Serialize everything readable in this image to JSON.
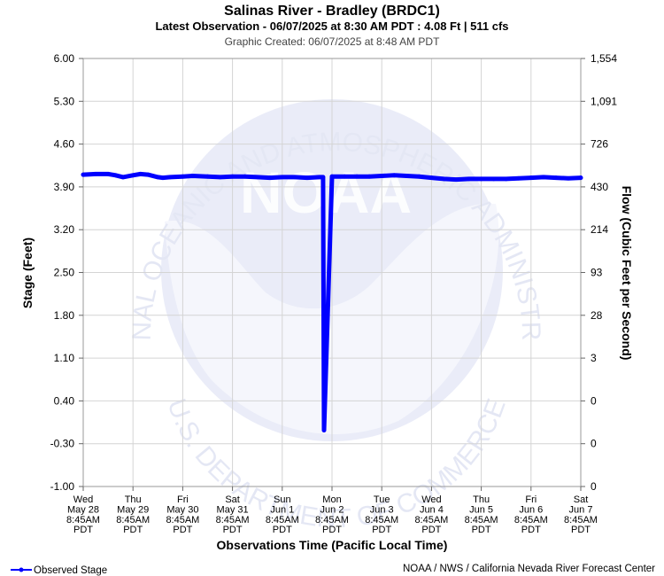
{
  "chart_data": {
    "type": "line",
    "title": "Salinas River - Bradley (BRDC1)",
    "subtitle": "Latest Observation - 06/07/2025 at 8:30 AM PDT : 4.08 Ft | 511 cfs",
    "created": "Graphic Created: 06/07/2025 at 8:48 AM PDT",
    "xlabel": "Observations Time (Pacific Local Time)",
    "ylabel": "Stage (Feet)",
    "y2label": "Flow (Cubic Feet per Second)",
    "ylim": [
      -1.0,
      6.0
    ],
    "xlim": [
      0,
      10
    ],
    "y_ticks": [
      "6.00",
      "5.30",
      "4.60",
      "3.90",
      "3.20",
      "2.50",
      "1.80",
      "1.10",
      "0.40",
      "-0.30",
      "-1.00"
    ],
    "y2_ticks": [
      "1,554",
      "1,091",
      "726",
      "430",
      "214",
      "93",
      "28",
      "3",
      "0",
      "0",
      "0"
    ],
    "x_ticks": [
      {
        "day": "Wed",
        "date": "May 28",
        "time": "8:45AM",
        "tz": "PDT"
      },
      {
        "day": "Thu",
        "date": "May 29",
        "time": "8:45AM",
        "tz": "PDT"
      },
      {
        "day": "Fri",
        "date": "May 30",
        "time": "8:45AM",
        "tz": "PDT"
      },
      {
        "day": "Sat",
        "date": "May 31",
        "time": "8:45AM",
        "tz": "PDT"
      },
      {
        "day": "Sun",
        "date": "Jun 1",
        "time": "8:45AM",
        "tz": "PDT"
      },
      {
        "day": "Mon",
        "date": "Jun 2",
        "time": "8:45AM",
        "tz": "PDT"
      },
      {
        "day": "Tue",
        "date": "Jun 3",
        "time": "8:45AM",
        "tz": "PDT"
      },
      {
        "day": "Wed",
        "date": "Jun 4",
        "time": "8:45AM",
        "tz": "PDT"
      },
      {
        "day": "Thu",
        "date": "Jun 5",
        "time": "8:45AM",
        "tz": "PDT"
      },
      {
        "day": "Fri",
        "date": "Jun 6",
        "time": "8:45AM",
        "tz": "PDT"
      },
      {
        "day": "Sat",
        "date": "Jun 7",
        "time": "8:45AM",
        "tz": "PDT"
      }
    ],
    "series": [
      {
        "name": "Observed Stage",
        "color": "#0000ff",
        "x": [
          0,
          0.25,
          0.5,
          0.65,
          0.8,
          1.0,
          1.15,
          1.3,
          1.5,
          1.6,
          1.75,
          2.0,
          2.2,
          2.5,
          2.75,
          3.0,
          3.25,
          3.5,
          3.75,
          4.0,
          4.25,
          4.5,
          4.75,
          4.8,
          4.82,
          4.84,
          5.0,
          5.25,
          5.5,
          5.75,
          6.0,
          6.25,
          6.5,
          6.75,
          7.0,
          7.25,
          7.5,
          7.75,
          8.0,
          8.25,
          8.5,
          8.75,
          9.0,
          9.25,
          9.5,
          9.75,
          10.0
        ],
        "y": [
          4.1,
          4.11,
          4.11,
          4.09,
          4.06,
          4.09,
          4.11,
          4.1,
          4.06,
          4.05,
          4.06,
          4.07,
          4.08,
          4.07,
          4.06,
          4.07,
          4.07,
          4.06,
          4.05,
          4.06,
          4.06,
          4.05,
          4.06,
          4.06,
          4.06,
          -0.08,
          4.07,
          4.07,
          4.07,
          4.07,
          4.08,
          4.09,
          4.08,
          4.07,
          4.05,
          4.03,
          4.02,
          4.03,
          4.03,
          4.03,
          4.03,
          4.04,
          4.05,
          4.06,
          4.05,
          4.04,
          4.05
        ]
      }
    ],
    "grid": true,
    "legend": "bottom-left"
  },
  "footer_credit": "NOAA / NWS / California Nevada River Forecast Center",
  "watermark": {
    "top": "NATIONAL OCEANIC AND ATMOSPHERIC ADMINISTRATION",
    "bottom": "U.S. DEPARTMENT OF COMMERCE",
    "center": "NOAA"
  }
}
